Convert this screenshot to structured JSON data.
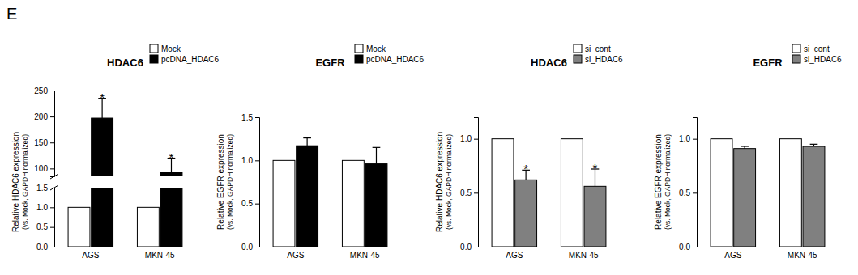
{
  "panel_label": "E",
  "chart_data": [
    {
      "type": "bar",
      "title": "HDAC6",
      "y_label": [
        "Relative HDAC6 expression",
        "(vs. Mock, GAPDH normalized)"
      ],
      "categories": [
        "AGS",
        "MKN-45"
      ],
      "series": [
        {
          "name": "Mock",
          "color": "#ffffff",
          "values": [
            1,
            1
          ],
          "errors": [
            null,
            null
          ]
        },
        {
          "name": "pcDNA_HDAC6",
          "color": "#000000",
          "values": [
            197,
            92
          ],
          "errors": [
            38,
            28
          ]
        }
      ],
      "ylim": [
        [
          0,
          1.5
        ],
        [
          85,
          250
        ]
      ],
      "yticks": [
        [
          {
            "value": 0,
            "label": "0.0"
          },
          {
            "value": 0.5,
            "label": "0.5"
          },
          {
            "value": 1,
            "label": "1.0"
          },
          {
            "value": 1.5,
            "label": "1.5"
          }
        ],
        [
          100,
          150,
          200,
          250
        ]
      ],
      "annotations": [
        {
          "text": "*",
          "category": 0,
          "series": 1
        },
        {
          "text": "*",
          "category": 1,
          "series": 1
        }
      ]
    },
    {
      "type": "bar",
      "title": "EGFR",
      "y_label": [
        "Relative EGFR expression",
        "(vs. Mock, GAPDH normalized)"
      ],
      "categories": [
        "AGS",
        "MKN-45"
      ],
      "series": [
        {
          "name": "Mock",
          "color": "#ffffff",
          "values": [
            1,
            1
          ],
          "errors": [
            null,
            null
          ]
        },
        {
          "name": "pcDNA_HDAC6",
          "color": "#000000",
          "values": [
            1.17,
            0.96
          ],
          "errors": [
            0.09,
            0.19
          ]
        }
      ],
      "ylim": [
        0,
        1.5
      ],
      "yticks": [
        {
          "value": 0,
          "label": "0.0"
        },
        {
          "value": 0.5,
          "label": "0.5"
        },
        {
          "value": 1,
          "label": "1.0"
        },
        {
          "value": 1.5,
          "label": "1.5"
        }
      ]
    },
    {
      "type": "bar",
      "title": "HDAC6",
      "y_label": [
        "Relative HDAC6 expression",
        "(vs. Mock, GAPDH normalized)"
      ],
      "categories": [
        "AGS",
        "MKN-45"
      ],
      "series": [
        {
          "name": "si_cont",
          "color": "#ffffff",
          "values": [
            1,
            1
          ],
          "errors": [
            null,
            null
          ]
        },
        {
          "name": "si_HDAC6",
          "color": "#808080",
          "values": [
            0.62,
            0.56
          ],
          "errors": [
            0.09,
            0.16
          ]
        }
      ],
      "ylim": [
        0,
        1.2
      ],
      "yticks": [
        {
          "value": 0,
          "label": "0.0"
        },
        {
          "value": 0.5,
          "label": "0.5"
        },
        {
          "value": 1,
          "label": "1.0"
        }
      ],
      "annotations": [
        {
          "text": "*",
          "category": 0,
          "series": 1
        },
        {
          "text": "*",
          "category": 1,
          "series": 1
        }
      ]
    },
    {
      "type": "bar",
      "title": "EGFR",
      "y_label": [
        "Relative EGFR expression",
        "(vs. Mock, GAPDH normalized)"
      ],
      "categories": [
        "AGS",
        "MKN-45"
      ],
      "series": [
        {
          "name": "si_cont",
          "color": "#ffffff",
          "values": [
            1,
            1
          ],
          "errors": [
            null,
            null
          ]
        },
        {
          "name": "si_HDAC6",
          "color": "#808080",
          "values": [
            0.91,
            0.93
          ],
          "errors": [
            0.02,
            0.02
          ]
        }
      ],
      "ylim": [
        0,
        1.2
      ],
      "yticks": [
        {
          "value": 0,
          "label": "0.0"
        },
        {
          "value": 0.5,
          "label": "0.5"
        },
        {
          "value": 1,
          "label": "1.0"
        }
      ]
    }
  ]
}
